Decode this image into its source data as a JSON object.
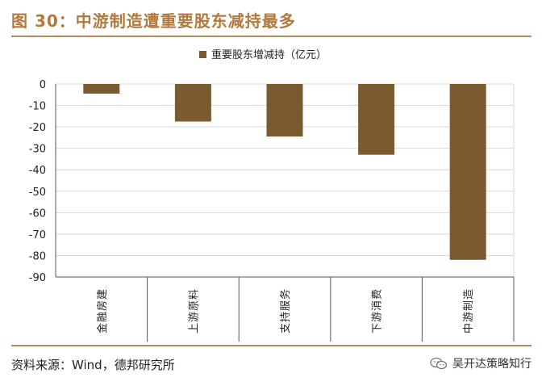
{
  "figure": {
    "title": "图 30：中游制造遭重要股东减持最多",
    "source": "资料来源：Wind，德邦研究所",
    "brand": "吴开达策略知行"
  },
  "colors": {
    "bar": "#7b5a30",
    "title": "#b07a3e",
    "rule": "#b58a5c",
    "grid": "#d9d9d9",
    "plot_bg": "#ffffff"
  },
  "chart_data": {
    "type": "bar",
    "categories": [
      "金融房建",
      "上游原料",
      "支持服务",
      "下游消费",
      "中游制造"
    ],
    "series": [
      {
        "name": "重要股东增减持（亿元）",
        "values": [
          -4.5,
          -17.5,
          -24.5,
          -33,
          -82
        ]
      }
    ],
    "ylim": [
      -90,
      0
    ],
    "yticks": [
      0,
      -10,
      -20,
      -30,
      -40,
      -50,
      -60,
      -70,
      -80,
      -90
    ],
    "grid": true,
    "legend": "top-center"
  }
}
